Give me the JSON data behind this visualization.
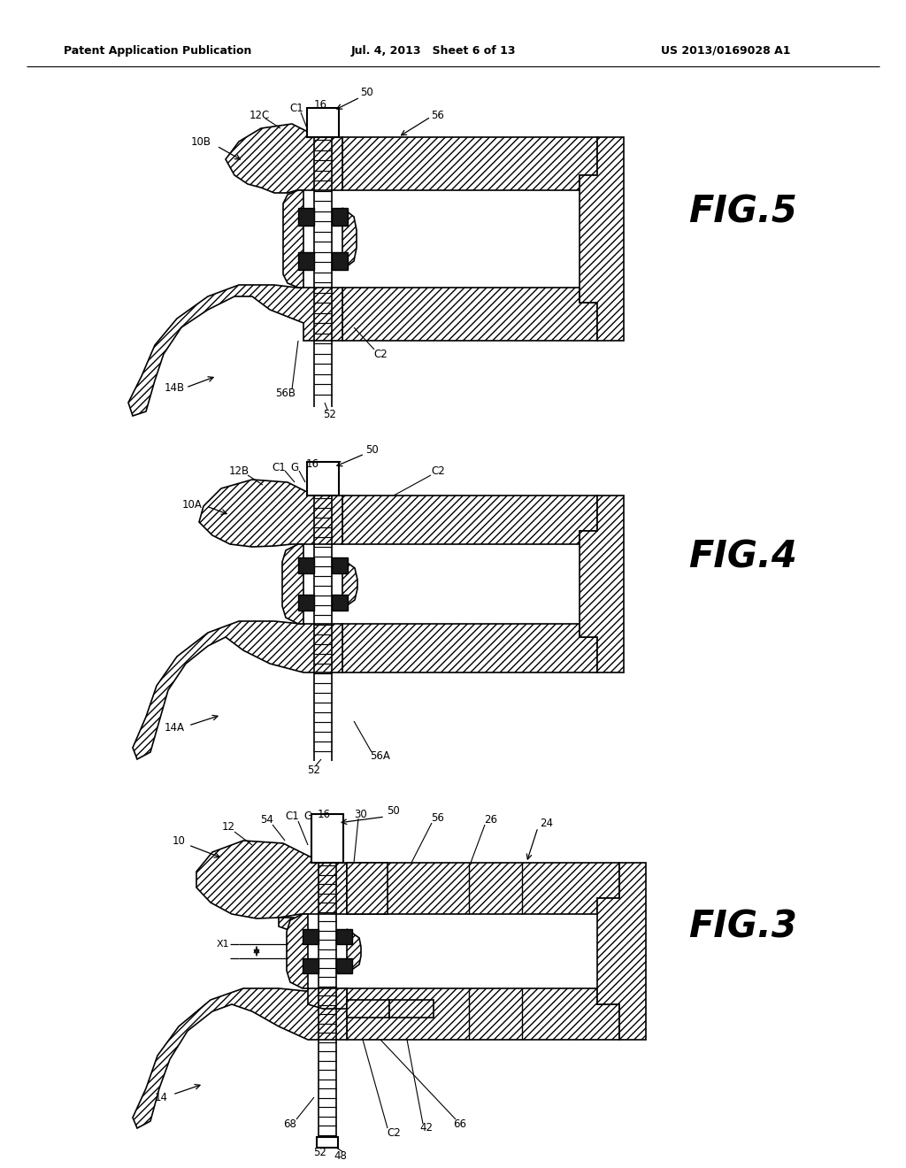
{
  "header_left": "Patent Application Publication",
  "header_center": "Jul. 4, 2013   Sheet 6 of 13",
  "header_right": "US 2013/0169028 A1",
  "background_color": "#ffffff",
  "fig5_label": "FIG.5",
  "fig4_label": "FIG.4",
  "fig3_label": "FIG.3"
}
